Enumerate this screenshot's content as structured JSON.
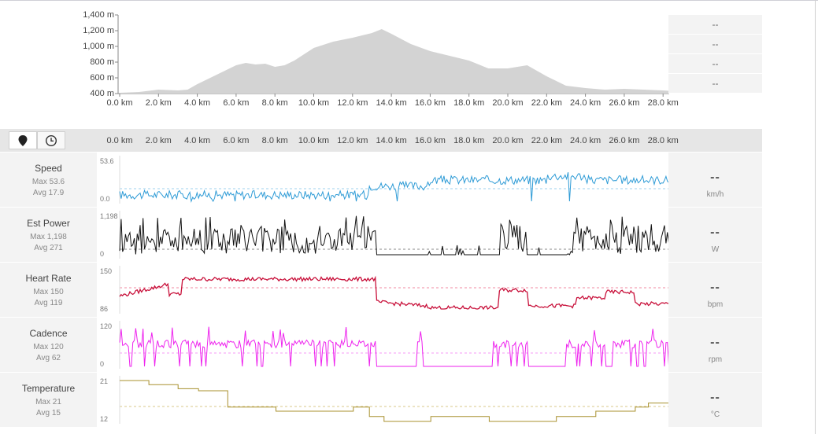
{
  "elevation": {
    "y_ticks": [
      "1,400 m",
      "1,200 m",
      "1,000 m",
      "800 m",
      "600 m",
      "400 m"
    ],
    "x_ticks": [
      "0.0 km",
      "2.0 km",
      "4.0 km",
      "6.0 km",
      "8.0 km",
      "10.0 km",
      "12.0 km",
      "14.0 km",
      "16.0 km",
      "18.0 km",
      "20.0 km",
      "22.0 km",
      "24.0 km",
      "26.0 km",
      "28.0 km"
    ],
    "fill_color": "#d3d3d3",
    "profile_km": [
      0,
      1,
      2,
      3,
      3.5,
      4,
      5,
      6,
      6.5,
      7,
      7.5,
      8,
      8.5,
      9,
      10,
      11,
      12,
      13,
      13.5,
      14,
      15,
      16,
      17,
      18,
      19,
      20,
      21,
      22,
      23,
      24,
      25,
      26,
      27,
      28,
      28.6
    ],
    "profile_m": [
      410,
      420,
      450,
      440,
      450,
      520,
      640,
      760,
      790,
      770,
      780,
      740,
      760,
      820,
      980,
      1060,
      1110,
      1170,
      1220,
      1160,
      1030,
      940,
      880,
      820,
      720,
      720,
      760,
      620,
      500,
      470,
      450,
      460,
      450,
      440,
      430
    ],
    "stats": [
      "--",
      "--",
      "--",
      "--"
    ]
  },
  "toolbar": {
    "map_icon": "map-pin-icon",
    "time_icon": "clock-icon",
    "x_ticks": [
      "0.0 km",
      "2.0 km",
      "4.0 km",
      "6.0 km",
      "8.0 km",
      "10.0 km",
      "12.0 km",
      "14.0 km",
      "16.0 km",
      "18.0 km",
      "20.0 km",
      "22.0 km",
      "24.0 km",
      "26.0 km",
      "28.0 km"
    ]
  },
  "metrics": [
    {
      "name": "Speed",
      "max": "Max 53.6",
      "avg": "Avg 17.9",
      "ytop": "53.6",
      "ybot": "0.0",
      "value": "--",
      "unit": "km/h",
      "color": "#2e9bd6",
      "avg_color": "#9cd0ee"
    },
    {
      "name": "Est Power",
      "max": "Max 1,198",
      "avg": "Avg 271",
      "ytop": "1,198",
      "ybot": "0",
      "value": "--",
      "unit": "W",
      "color": "#111111",
      "avg_color": "#888888"
    },
    {
      "name": "Heart Rate",
      "max": "Max 150",
      "avg": "Avg 119",
      "ytop": "150",
      "ybot": "86",
      "value": "--",
      "unit": "bpm",
      "color": "#c8103a",
      "avg_color": "#f08aa0"
    },
    {
      "name": "Cadence",
      "max": "Max 120",
      "avg": "Avg 62",
      "ytop": "120",
      "ybot": "0",
      "value": "--",
      "unit": "rpm",
      "color": "#ee22ee",
      "avg_color": "#f49af4"
    },
    {
      "name": "Temperature",
      "max": "Max 21",
      "avg": "Avg 15",
      "ytop": "21",
      "ybot": "12",
      "value": "--",
      "unit": "°C",
      "color": "#a8902e",
      "avg_color": "#d8c98a"
    }
  ]
}
